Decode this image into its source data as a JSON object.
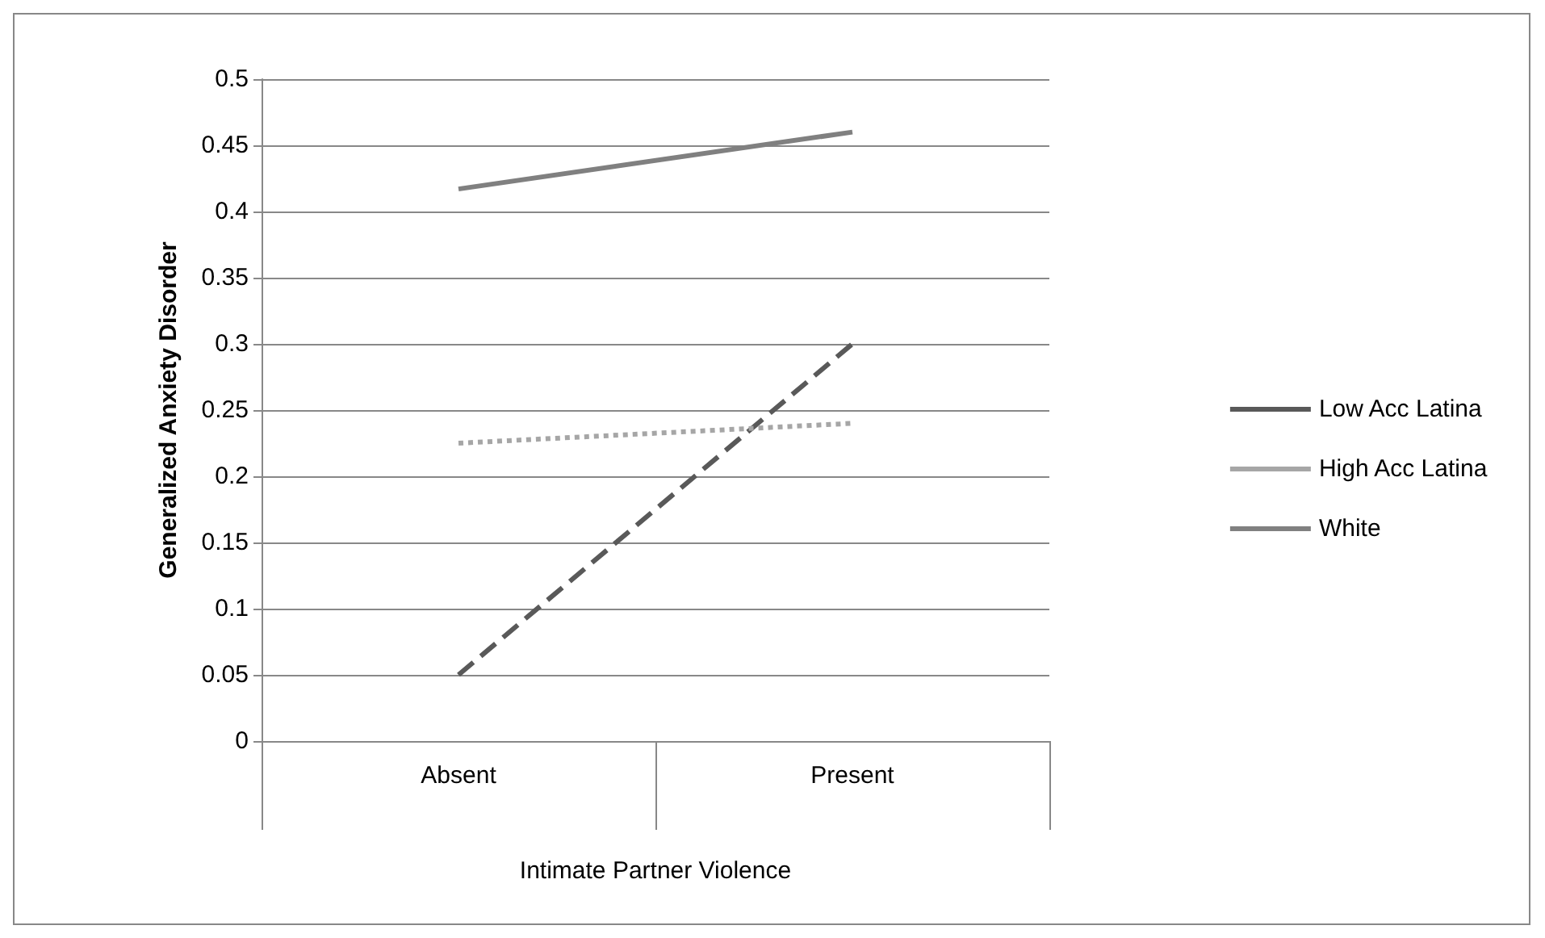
{
  "chart_data": {
    "type": "line",
    "xlabel": "Intimate Partner Violence",
    "ylabel": "Generalized Anxiety Disorder",
    "categories": [
      "Absent",
      "Present"
    ],
    "series": [
      {
        "name": "Low Acc Latina",
        "color": "#595959",
        "line_style": "dashed",
        "values": [
          0.05,
          0.3
        ]
      },
      {
        "name": "High Acc Latina",
        "color": "#a6a6a6",
        "line_style": "dotted",
        "values": [
          0.225,
          0.24
        ]
      },
      {
        "name": "White",
        "color": "#808080",
        "line_style": "solid",
        "values": [
          0.417,
          0.46
        ]
      }
    ],
    "ylim": [
      0,
      0.5
    ],
    "yticks": [
      0,
      0.05,
      0.1,
      0.15,
      0.2,
      0.25,
      0.3,
      0.35,
      0.4,
      0.45,
      0.5
    ],
    "grid": "y",
    "legend": "right",
    "marker": "none"
  }
}
